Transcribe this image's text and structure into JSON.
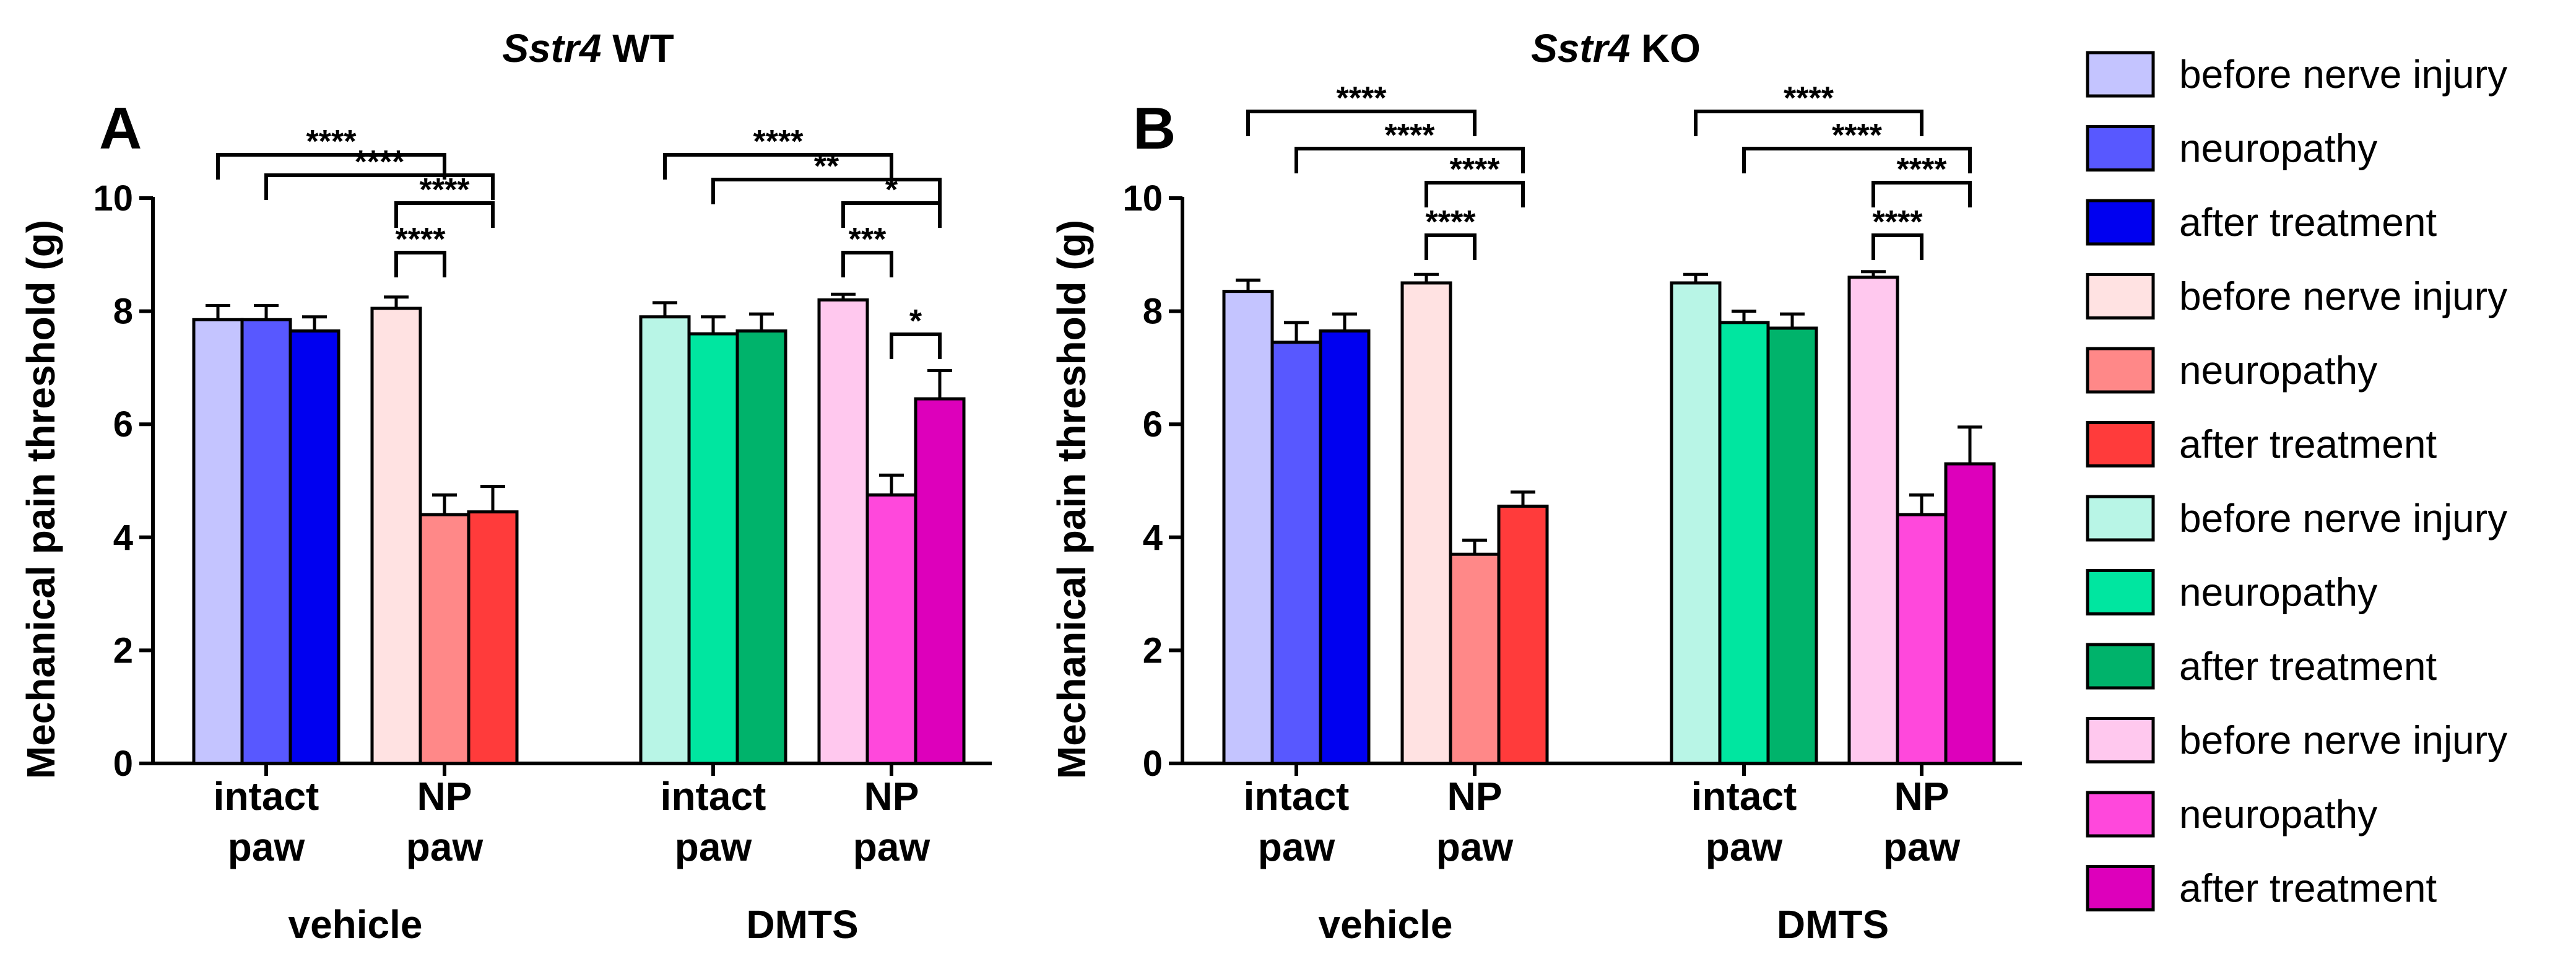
{
  "legend": [
    {
      "label": "before nerve injury",
      "color": "#c4c4ff"
    },
    {
      "label": "neuropathy",
      "color": "#5858ff"
    },
    {
      "label": "after treatment",
      "color": "#0000f0"
    },
    {
      "label": "before nerve injury",
      "color": "#ffe2e2"
    },
    {
      "label": "neuropathy",
      "color": "#ff8888"
    },
    {
      "label": "after treatment",
      "color": "#ff3b3b"
    },
    {
      "label": "before nerve injury",
      "color": "#b8f5e6"
    },
    {
      "label": "neuropathy",
      "color": "#00e6a0"
    },
    {
      "label": "after treatment",
      "color": "#00b36b"
    },
    {
      "label": "before nerve injury",
      "color": "#ffc8ee"
    },
    {
      "label": "neuropathy",
      "color": "#ff48dc"
    },
    {
      "label": "after treatment",
      "color": "#dd00bb"
    }
  ],
  "chart_data": [
    {
      "type": "bar",
      "panel_label": "A",
      "title_italic": "Sstr4",
      "title_rest": "WT",
      "ylabel": "Mechanical pain threshold (g)",
      "ylim": [
        0,
        10
      ],
      "yticks": [
        "0",
        "2",
        "4",
        "6",
        "8",
        "10"
      ],
      "groups": [
        {
          "name": "vehicle",
          "subgroups": [
            {
              "label_line1": "intact",
              "label_line2": "paw",
              "values": [
                7.85,
                7.85,
                7.65
              ],
              "errors": [
                0.25,
                0.25,
                0.25
              ],
              "colors": [
                0,
                1,
                2
              ]
            },
            {
              "label_line1": "NP",
              "label_line2": "paw",
              "values": [
                8.05,
                4.4,
                4.45
              ],
              "errors": [
                0.2,
                0.35,
                0.45
              ],
              "colors": [
                3,
                4,
                5
              ]
            }
          ]
        },
        {
          "name": "DMTS",
          "subgroups": [
            {
              "label_line1": "intact",
              "label_line2": "paw",
              "values": [
                7.9,
                7.6,
                7.65
              ],
              "errors": [
                0.25,
                0.3,
                0.3
              ],
              "colors": [
                6,
                7,
                8
              ]
            },
            {
              "label_line1": "NP",
              "label_line2": "paw",
              "values": [
                8.2,
                4.75,
                6.45
              ],
              "errors": [
                0.1,
                0.35,
                0.5
              ],
              "colors": [
                9,
                10,
                11
              ]
            }
          ]
        }
      ],
      "significance": [
        {
          "from": [
            0,
            0,
            0
          ],
          "to": [
            0,
            1,
            1
          ],
          "label": "****"
        },
        {
          "from": [
            0,
            0,
            1
          ],
          "to": [
            0,
            1,
            2
          ],
          "label": "****"
        },
        {
          "from": [
            0,
            1,
            0
          ],
          "to": [
            0,
            1,
            2
          ],
          "label": "****"
        },
        {
          "from": [
            0,
            1,
            0
          ],
          "to": [
            0,
            1,
            1
          ],
          "label": "****"
        },
        {
          "from": [
            1,
            0,
            0
          ],
          "to": [
            1,
            1,
            1
          ],
          "label": "****"
        },
        {
          "from": [
            1,
            0,
            1
          ],
          "to": [
            1,
            1,
            2
          ],
          "label": "**"
        },
        {
          "from": [
            1,
            1,
            0
          ],
          "to": [
            1,
            1,
            2
          ],
          "label": "*"
        },
        {
          "from": [
            1,
            1,
            0
          ],
          "to": [
            1,
            1,
            1
          ],
          "label": "***"
        },
        {
          "from": [
            1,
            1,
            1
          ],
          "to": [
            1,
            1,
            2
          ],
          "label": "*"
        }
      ]
    },
    {
      "type": "bar",
      "panel_label": "B",
      "title_italic": "Sstr4",
      "title_rest": "KO",
      "ylabel": "Mechanical pain threshold (g)",
      "ylim": [
        0,
        10
      ],
      "yticks": [
        "0",
        "2",
        "4",
        "6",
        "8",
        "10"
      ],
      "groups": [
        {
          "name": "vehicle",
          "subgroups": [
            {
              "label_line1": "intact",
              "label_line2": "paw",
              "values": [
                8.35,
                7.45,
                7.65
              ],
              "errors": [
                0.2,
                0.35,
                0.3
              ],
              "colors": [
                0,
                1,
                2
              ]
            },
            {
              "label_line1": "NP",
              "label_line2": "paw",
              "values": [
                8.5,
                3.7,
                4.55
              ],
              "errors": [
                0.15,
                0.25,
                0.25
              ],
              "colors": [
                3,
                4,
                5
              ]
            }
          ]
        },
        {
          "name": "DMTS",
          "subgroups": [
            {
              "label_line1": "intact",
              "label_line2": "paw",
              "values": [
                8.5,
                7.8,
                7.7
              ],
              "errors": [
                0.15,
                0.2,
                0.25
              ],
              "colors": [
                6,
                7,
                8
              ]
            },
            {
              "label_line1": "NP",
              "label_line2": "paw",
              "values": [
                8.6,
                4.4,
                5.3
              ],
              "errors": [
                0.1,
                0.35,
                0.65
              ],
              "colors": [
                9,
                10,
                11
              ]
            }
          ]
        }
      ],
      "significance": [
        {
          "from": [
            0,
            0,
            0
          ],
          "to": [
            0,
            1,
            1
          ],
          "label": "****"
        },
        {
          "from": [
            0,
            0,
            1
          ],
          "to": [
            0,
            1,
            2
          ],
          "label": "****"
        },
        {
          "from": [
            0,
            1,
            0
          ],
          "to": [
            0,
            1,
            2
          ],
          "label": "****"
        },
        {
          "from": [
            0,
            1,
            0
          ],
          "to": [
            0,
            1,
            1
          ],
          "label": "****"
        },
        {
          "from": [
            1,
            0,
            0
          ],
          "to": [
            1,
            1,
            1
          ],
          "label": "****"
        },
        {
          "from": [
            1,
            0,
            1
          ],
          "to": [
            1,
            1,
            2
          ],
          "label": "****"
        },
        {
          "from": [
            1,
            1,
            0
          ],
          "to": [
            1,
            1,
            2
          ],
          "label": "****"
        },
        {
          "from": [
            1,
            1,
            0
          ],
          "to": [
            1,
            1,
            1
          ],
          "label": "****"
        }
      ]
    }
  ]
}
